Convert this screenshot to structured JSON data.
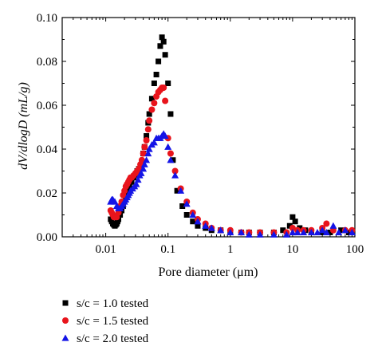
{
  "chart_data": {
    "type": "scatter",
    "title": "",
    "xlabel": "Pore diameter (μm)",
    "ylabel": "dV/dlogD (mL/g)",
    "xscale": "log",
    "xlim": [
      0.002,
      100
    ],
    "ylim": [
      0,
      0.1
    ],
    "xticks": [
      0.01,
      0.1,
      1,
      10,
      100
    ],
    "xtick_labels": [
      "0.01",
      "0.1",
      "1",
      "10",
      "100"
    ],
    "yticks": [
      0,
      0.02,
      0.04,
      0.06,
      0.08,
      0.1
    ],
    "ytick_labels": [
      "0.00",
      "0.02",
      "0.04",
      "0.06",
      "0.08",
      "0.10"
    ],
    "grid": false,
    "legend": "below-left",
    "series": [
      {
        "name": "s/c = 1.0 tested",
        "marker": "square",
        "color": "#000000",
        "points": [
          [
            0.012,
            0.008
          ],
          [
            0.0125,
            0.007
          ],
          [
            0.013,
            0.006
          ],
          [
            0.0135,
            0.0055
          ],
          [
            0.014,
            0.005
          ],
          [
            0.0145,
            0.0055
          ],
          [
            0.015,
            0.006
          ],
          [
            0.0155,
            0.007
          ],
          [
            0.016,
            0.008
          ],
          [
            0.017,
            0.01
          ],
          [
            0.018,
            0.012
          ],
          [
            0.019,
            0.014
          ],
          [
            0.02,
            0.016
          ],
          [
            0.021,
            0.018
          ],
          [
            0.022,
            0.02
          ],
          [
            0.023,
            0.022
          ],
          [
            0.024,
            0.023
          ],
          [
            0.026,
            0.025
          ],
          [
            0.028,
            0.027
          ],
          [
            0.03,
            0.028
          ],
          [
            0.032,
            0.03
          ],
          [
            0.034,
            0.031
          ],
          [
            0.036,
            0.032
          ],
          [
            0.038,
            0.034
          ],
          [
            0.04,
            0.038
          ],
          [
            0.042,
            0.041
          ],
          [
            0.045,
            0.046
          ],
          [
            0.048,
            0.052
          ],
          [
            0.05,
            0.056
          ],
          [
            0.055,
            0.063
          ],
          [
            0.06,
            0.07
          ],
          [
            0.065,
            0.074
          ],
          [
            0.07,
            0.08
          ],
          [
            0.075,
            0.087
          ],
          [
            0.08,
            0.091
          ],
          [
            0.085,
            0.089
          ],
          [
            0.09,
            0.083
          ],
          [
            0.1,
            0.07
          ],
          [
            0.11,
            0.056
          ],
          [
            0.12,
            0.035
          ],
          [
            0.14,
            0.021
          ],
          [
            0.17,
            0.014
          ],
          [
            0.2,
            0.01
          ],
          [
            0.25,
            0.007
          ],
          [
            0.3,
            0.005
          ],
          [
            0.4,
            0.004
          ],
          [
            0.5,
            0.003
          ],
          [
            0.7,
            0.003
          ],
          [
            1.0,
            0.002
          ],
          [
            1.5,
            0.002
          ],
          [
            2.0,
            0.002
          ],
          [
            3.0,
            0.002
          ],
          [
            5.0,
            0.002
          ],
          [
            7.0,
            0.003
          ],
          [
            9.0,
            0.005
          ],
          [
            10.0,
            0.009
          ],
          [
            11.0,
            0.007
          ],
          [
            13.0,
            0.004
          ],
          [
            16.0,
            0.003
          ],
          [
            20.0,
            0.002
          ],
          [
            30.0,
            0.002
          ],
          [
            40.0,
            0.002
          ],
          [
            60.0,
            0.003
          ],
          [
            80.0,
            0.002
          ]
        ]
      },
      {
        "name": "s/c = 1.5 tested",
        "marker": "circle",
        "color": "#e8141c",
        "points": [
          [
            0.012,
            0.012
          ],
          [
            0.0125,
            0.011
          ],
          [
            0.013,
            0.01
          ],
          [
            0.0135,
            0.009
          ],
          [
            0.014,
            0.009
          ],
          [
            0.015,
            0.009
          ],
          [
            0.016,
            0.011
          ],
          [
            0.017,
            0.014
          ],
          [
            0.018,
            0.016
          ],
          [
            0.019,
            0.019
          ],
          [
            0.02,
            0.021
          ],
          [
            0.021,
            0.023
          ],
          [
            0.022,
            0.024
          ],
          [
            0.023,
            0.025
          ],
          [
            0.024,
            0.026
          ],
          [
            0.025,
            0.027
          ],
          [
            0.026,
            0.027
          ],
          [
            0.028,
            0.028
          ],
          [
            0.03,
            0.029
          ],
          [
            0.032,
            0.03
          ],
          [
            0.034,
            0.031
          ],
          [
            0.036,
            0.033
          ],
          [
            0.038,
            0.035
          ],
          [
            0.04,
            0.038
          ],
          [
            0.042,
            0.041
          ],
          [
            0.045,
            0.044
          ],
          [
            0.048,
            0.049
          ],
          [
            0.05,
            0.053
          ],
          [
            0.055,
            0.058
          ],
          [
            0.06,
            0.061
          ],
          [
            0.065,
            0.064
          ],
          [
            0.07,
            0.066
          ],
          [
            0.075,
            0.067
          ],
          [
            0.08,
            0.068
          ],
          [
            0.085,
            0.068
          ],
          [
            0.09,
            0.062
          ],
          [
            0.1,
            0.045
          ],
          [
            0.11,
            0.038
          ],
          [
            0.13,
            0.03
          ],
          [
            0.16,
            0.022
          ],
          [
            0.2,
            0.016
          ],
          [
            0.25,
            0.011
          ],
          [
            0.3,
            0.008
          ],
          [
            0.4,
            0.006
          ],
          [
            0.5,
            0.004
          ],
          [
            0.7,
            0.003
          ],
          [
            1.0,
            0.003
          ],
          [
            1.5,
            0.002
          ],
          [
            2.0,
            0.002
          ],
          [
            3.0,
            0.002
          ],
          [
            5.0,
            0.002
          ],
          [
            8.0,
            0.002
          ],
          [
            10.0,
            0.004
          ],
          [
            12.0,
            0.003
          ],
          [
            15.0,
            0.003
          ],
          [
            20.0,
            0.003
          ],
          [
            30.0,
            0.004
          ],
          [
            35.0,
            0.006
          ],
          [
            45.0,
            0.003
          ],
          [
            70.0,
            0.003
          ],
          [
            90.0,
            0.003
          ]
        ]
      },
      {
        "name": "s/c = 2.0 tested",
        "marker": "triangle",
        "color": "#1414e6",
        "points": [
          [
            0.012,
            0.016
          ],
          [
            0.0125,
            0.017
          ],
          [
            0.013,
            0.017
          ],
          [
            0.014,
            0.016
          ],
          [
            0.015,
            0.014
          ],
          [
            0.016,
            0.013
          ],
          [
            0.017,
            0.013
          ],
          [
            0.018,
            0.014
          ],
          [
            0.019,
            0.015
          ],
          [
            0.02,
            0.016
          ],
          [
            0.021,
            0.017
          ],
          [
            0.022,
            0.018
          ],
          [
            0.023,
            0.019
          ],
          [
            0.024,
            0.02
          ],
          [
            0.025,
            0.021
          ],
          [
            0.027,
            0.022
          ],
          [
            0.029,
            0.023
          ],
          [
            0.031,
            0.024
          ],
          [
            0.033,
            0.026
          ],
          [
            0.035,
            0.028
          ],
          [
            0.037,
            0.029
          ],
          [
            0.04,
            0.031
          ],
          [
            0.042,
            0.033
          ],
          [
            0.045,
            0.035
          ],
          [
            0.048,
            0.038
          ],
          [
            0.05,
            0.04
          ],
          [
            0.055,
            0.042
          ],
          [
            0.06,
            0.043
          ],
          [
            0.065,
            0.045
          ],
          [
            0.07,
            0.045
          ],
          [
            0.075,
            0.045
          ],
          [
            0.08,
            0.046
          ],
          [
            0.085,
            0.047
          ],
          [
            0.09,
            0.046
          ],
          [
            0.1,
            0.041
          ],
          [
            0.11,
            0.035
          ],
          [
            0.13,
            0.028
          ],
          [
            0.16,
            0.021
          ],
          [
            0.2,
            0.015
          ],
          [
            0.25,
            0.01
          ],
          [
            0.3,
            0.007
          ],
          [
            0.4,
            0.005
          ],
          [
            0.5,
            0.004
          ],
          [
            0.7,
            0.003
          ],
          [
            1.0,
            0.002
          ],
          [
            1.5,
            0.002
          ],
          [
            2.0,
            0.001
          ],
          [
            3.0,
            0.001
          ],
          [
            5.0,
            0.001
          ],
          [
            8.0,
            0.001
          ],
          [
            10.0,
            0.002
          ],
          [
            12.0,
            0.002
          ],
          [
            15.0,
            0.002
          ],
          [
            20.0,
            0.002
          ],
          [
            25.0,
            0.002
          ],
          [
            30.0,
            0.003
          ],
          [
            35.0,
            0.002
          ],
          [
            45.0,
            0.005
          ],
          [
            55.0,
            0.002
          ],
          [
            70.0,
            0.003
          ],
          [
            90.0,
            0.002
          ]
        ]
      }
    ]
  }
}
